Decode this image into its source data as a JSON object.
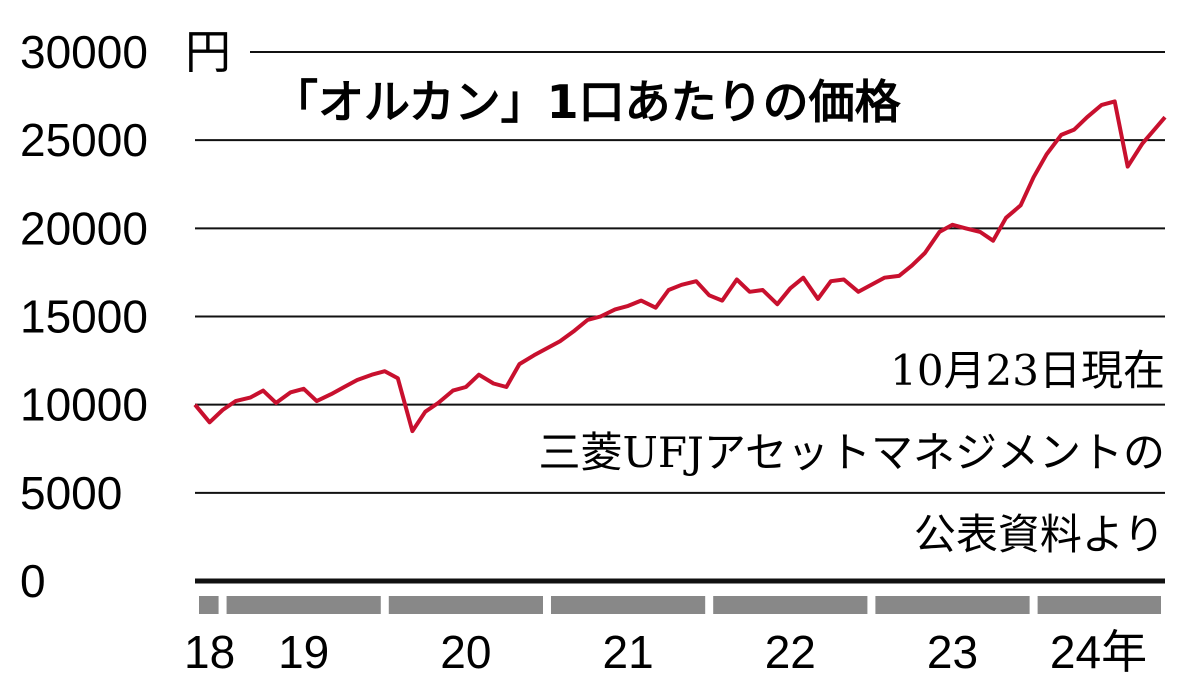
{
  "chart_data": {
    "type": "line",
    "title": "「オルカン」1口あたりの価格",
    "y_unit": "円",
    "annotations": [
      "10月23日現在",
      "三菱UFJアセットマネジメントの",
      "公表資料より"
    ],
    "ylim": [
      0,
      30000
    ],
    "yticks": [
      0,
      5000,
      10000,
      15000,
      20000,
      25000,
      30000
    ],
    "grid": true,
    "xlim": [
      2018.83,
      2024.81
    ],
    "xticks": [
      {
        "value": 2018.92,
        "label": "18"
      },
      {
        "value": 2019.5,
        "label": "19"
      },
      {
        "value": 2020.5,
        "label": "20"
      },
      {
        "value": 2021.5,
        "label": "21"
      },
      {
        "value": 2022.5,
        "label": "22"
      },
      {
        "value": 2023.5,
        "label": "23"
      },
      {
        "value": 2024.4,
        "label": "24年"
      }
    ],
    "x": [
      2018.83,
      2018.92,
      2019.0,
      2019.08,
      2019.17,
      2019.25,
      2019.33,
      2019.42,
      2019.5,
      2019.58,
      2019.67,
      2019.75,
      2019.83,
      2019.92,
      2020.0,
      2020.08,
      2020.17,
      2020.25,
      2020.33,
      2020.42,
      2020.5,
      2020.58,
      2020.67,
      2020.75,
      2020.83,
      2020.92,
      2021.0,
      2021.08,
      2021.17,
      2021.25,
      2021.33,
      2021.42,
      2021.5,
      2021.58,
      2021.67,
      2021.75,
      2021.83,
      2021.92,
      2022.0,
      2022.08,
      2022.17,
      2022.25,
      2022.33,
      2022.42,
      2022.5,
      2022.58,
      2022.67,
      2022.75,
      2022.83,
      2022.92,
      2023.0,
      2023.08,
      2023.17,
      2023.25,
      2023.33,
      2023.42,
      2023.5,
      2023.58,
      2023.67,
      2023.75,
      2023.83,
      2023.92,
      2024.0,
      2024.08,
      2024.17,
      2024.25,
      2024.33,
      2024.42,
      2024.5,
      2024.58,
      2024.67,
      2024.81
    ],
    "series": [
      {
        "color": "#c8102e",
        "values": [
          10000,
          9000,
          9700,
          10200,
          10400,
          10800,
          10100,
          10700,
          10900,
          10200,
          10600,
          11000,
          11400,
          11700,
          11900,
          11500,
          8500,
          9600,
          10100,
          10800,
          11000,
          11700,
          11200,
          11000,
          12300,
          12800,
          13200,
          13600,
          14200,
          14800,
          15000,
          15400,
          15600,
          15900,
          15500,
          16500,
          16800,
          17000,
          16200,
          15900,
          17100,
          16400,
          16500,
          15700,
          16600,
          17200,
          16000,
          17000,
          17100,
          16400,
          16800,
          17200,
          17300,
          17900,
          18600,
          19800,
          20200,
          20000,
          19800,
          19300,
          20600,
          21300,
          22900,
          24200,
          25300,
          25600,
          26300,
          27000,
          27200,
          23500,
          24800,
          26300
        ]
      }
    ]
  }
}
